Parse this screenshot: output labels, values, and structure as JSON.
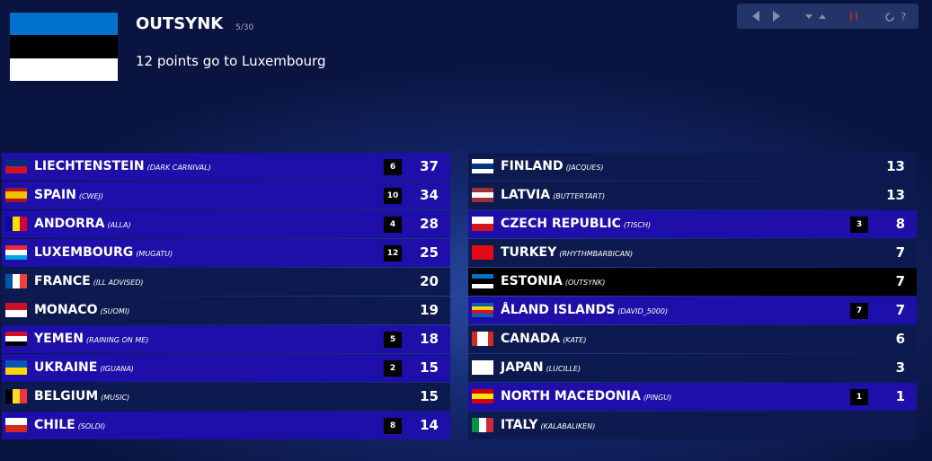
{
  "header": {
    "voter": "OUTSYNK",
    "progress": "5/30",
    "message": "12 points go to Luxembourg"
  },
  "left": [
    {
      "country": "LIECHTENSTEIN",
      "artist": "(DARK CARNIVAL)",
      "points": 6,
      "total": 37
    },
    {
      "country": "SPAIN",
      "artist": "(CWEJ)",
      "points": 10,
      "total": 34
    },
    {
      "country": "ANDORRA",
      "artist": "(ALLA)",
      "points": 4,
      "total": 28
    },
    {
      "country": "LUXEMBOURG",
      "artist": "(MUGATU)",
      "points": 12,
      "total": 25
    },
    {
      "country": "FRANCE",
      "artist": "(ILL ADVISED)",
      "total": 20
    },
    {
      "country": "MONACO",
      "artist": "(SUOMI)",
      "total": 19
    },
    {
      "country": "YEMEN",
      "artist": "(RAINING ON ME)",
      "points": 5,
      "total": 18
    },
    {
      "country": "UKRAINE",
      "artist": "(IGUANA)",
      "points": 2,
      "total": 15
    },
    {
      "country": "BELGIUM",
      "artist": "(MUSIC)",
      "total": 15
    },
    {
      "country": "CHILE",
      "artist": "(SOLDI)",
      "points": 8,
      "total": 14
    }
  ],
  "right": [
    {
      "country": "FINLAND",
      "artist": "(JACQUES)",
      "total": 13
    },
    {
      "country": "LATVIA",
      "artist": "(BUTTERTART)",
      "total": 13
    },
    {
      "country": "CZECH REPUBLIC",
      "artist": "(TISCH)",
      "points": 3,
      "total": 8
    },
    {
      "country": "TURKEY",
      "artist": "(RHYTHMBARBICAN)",
      "total": 7
    },
    {
      "country": "ESTONIA",
      "artist": "(OUTSYNK)",
      "total": 7,
      "current": true
    },
    {
      "country": "ÅLAND ISLANDS",
      "artist": "(DAVID_5000)",
      "points": 7,
      "total": 7
    },
    {
      "country": "CANADA",
      "artist": "(KATE)",
      "total": 6
    },
    {
      "country": "JAPAN",
      "artist": "(LUCILLE)",
      "total": 3
    },
    {
      "country": "NORTH MACEDONIA",
      "artist": "(PINGU)",
      "points": 1,
      "total": 1
    },
    {
      "country": "ITALY",
      "artist": "(KALABALIKEN)"
    }
  ]
}
